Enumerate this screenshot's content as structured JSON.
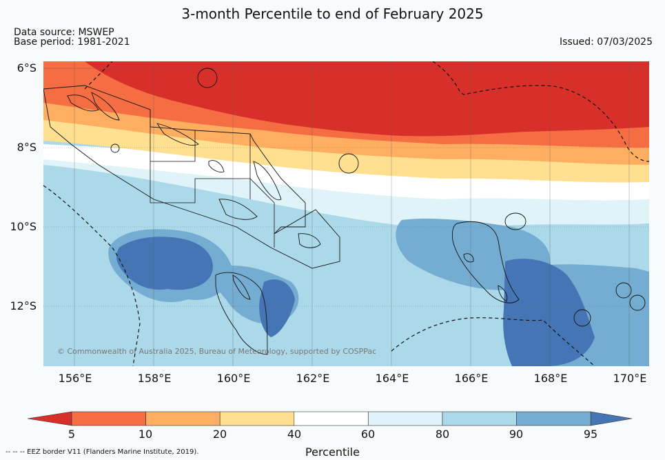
{
  "title": "3-month Percentile to end of February 2025",
  "source_line1": "Data source: MSWEP",
  "source_line2": "Base period: 1981-2021",
  "issued": "Issued: 07/03/2025",
  "lat_labels": [
    "6°S",
    "8°S",
    "10°S",
    "12°S"
  ],
  "lon_labels": [
    "156°E",
    "158°E",
    "160°E",
    "162°E",
    "164°E",
    "166°E",
    "168°E",
    "170°E"
  ],
  "copyright": "© Commonwealth of Australia 2025, Bureau of Meteorology, supported by COSPPac",
  "eez_note": "-- -- -- EEZ border V11 (Flanders Marine Institute, 2019).",
  "colorbar": {
    "title": "Percentile",
    "ticks": [
      "5",
      "10",
      "20",
      "40",
      "60",
      "80",
      "90",
      "95"
    ],
    "colors": [
      "#d7302a",
      "#f46d43",
      "#fdae61",
      "#fee090",
      "#ffffff",
      "#e0f3f8",
      "#abd9e9",
      "#74add1",
      "#4575b4"
    ]
  },
  "legend_colors": {
    "coast": "#111111",
    "grid": "#555555"
  }
}
